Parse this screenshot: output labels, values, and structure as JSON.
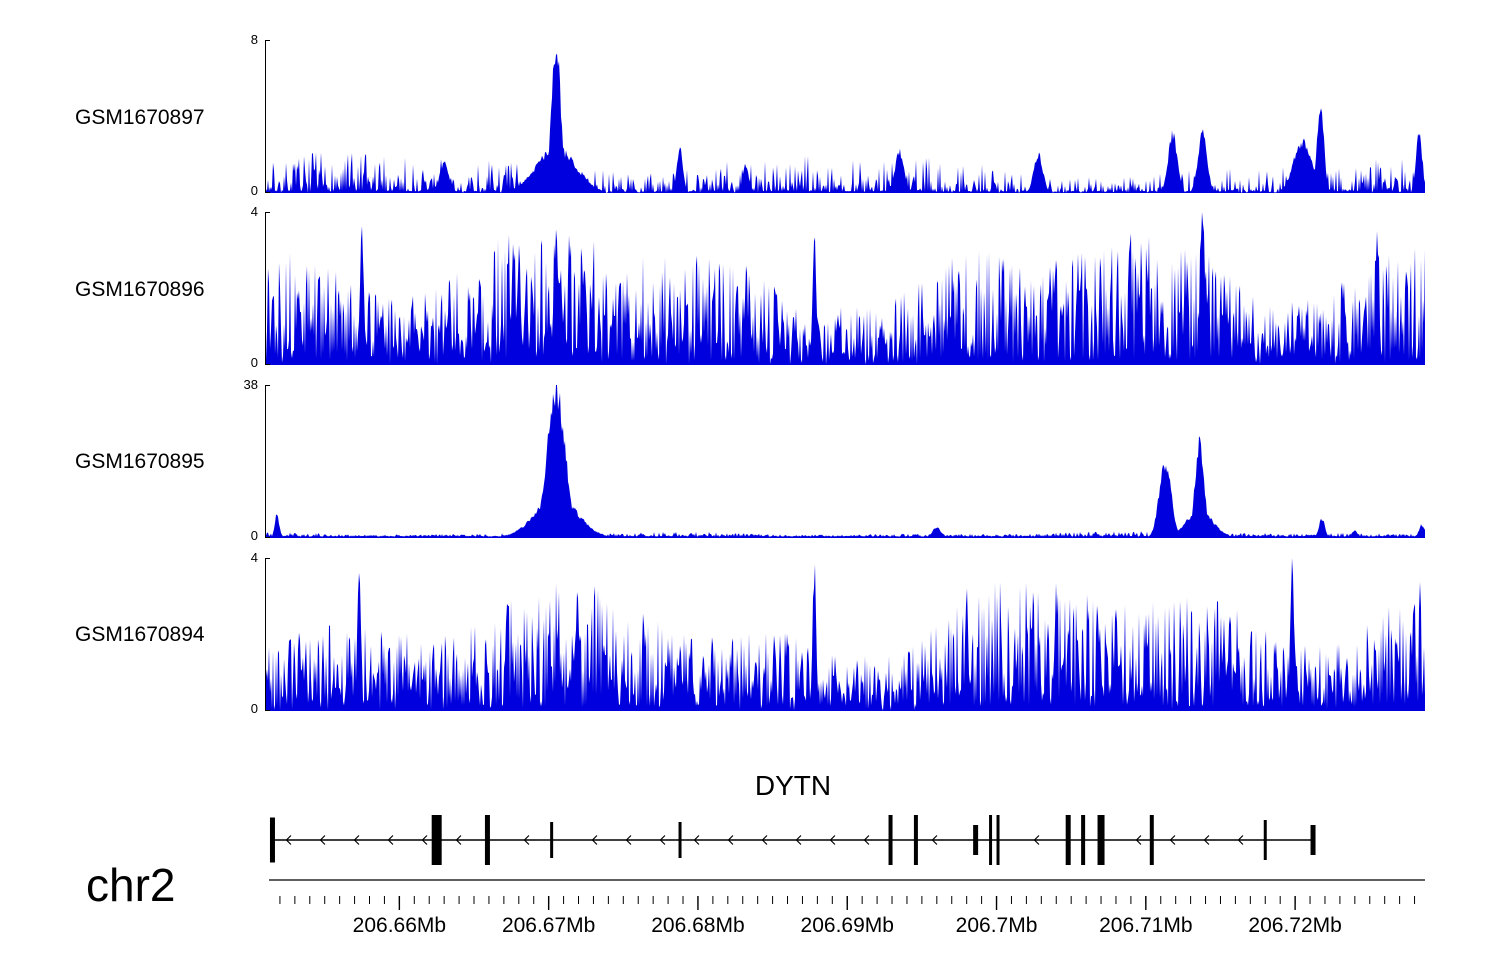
{
  "figure": {
    "background": "#ffffff",
    "signal_color": "#0000DE",
    "axis_color": "#000000",
    "text_color": "#000000"
  },
  "chart_data": {
    "type": "area",
    "description": "Four stacked genomic read-coverage tracks over gene DYTN on chr2, with gene model and genome coordinate axis",
    "x_axis": {
      "chromosome": "chr2",
      "start_mb": 206.651,
      "end_mb": 206.7287,
      "tick_values_mb": [
        206.66,
        206.67,
        206.68,
        206.69,
        206.7,
        206.71,
        206.72
      ],
      "tick_labels": [
        "206.66Mb",
        "206.67Mb",
        "206.68Mb",
        "206.69Mb",
        "206.7Mb",
        "206.71Mb",
        "206.72Mb"
      ],
      "minor_tick_interval_mb": 0.001
    },
    "tracks": [
      {
        "name": "GSM1670897",
        "ymin": 0,
        "ymax": 8,
        "ymin_label": "0",
        "ymax_label": "8",
        "noise": {
          "seed": 7,
          "floor": 0.012,
          "amp": 0.26,
          "exp": 3.0,
          "gap": 0.3
        },
        "peaks": [
          {
            "mb": 206.6705,
            "h": 1.0,
            "s": 0.0003
          },
          {
            "mb": 206.6705,
            "h": 0.3,
            "s": 0.0013
          },
          {
            "mb": 206.663,
            "h": 0.2,
            "s": 0.0003
          },
          {
            "mb": 206.6788,
            "h": 0.3,
            "s": 0.0002
          },
          {
            "mb": 206.6832,
            "h": 0.2,
            "s": 0.0002
          },
          {
            "mb": 206.6935,
            "h": 0.28,
            "s": 0.0003
          },
          {
            "mb": 206.7028,
            "h": 0.26,
            "s": 0.0003
          },
          {
            "mb": 206.7118,
            "h": 0.4,
            "s": 0.0003
          },
          {
            "mb": 206.7138,
            "h": 0.42,
            "s": 0.0003
          },
          {
            "mb": 206.7205,
            "h": 0.35,
            "s": 0.0006
          },
          {
            "mb": 206.7217,
            "h": 0.62,
            "s": 0.00022
          },
          {
            "mb": 206.7283,
            "h": 0.4,
            "s": 0.0002
          }
        ]
      },
      {
        "name": "GSM1670896",
        "ymin": 0,
        "ymax": 4,
        "ymin_label": "0",
        "ymax_label": "4",
        "noise": {
          "seed": 13,
          "floor": 0.03,
          "amp": 1.0,
          "exp": 1.25,
          "gap": 0.05
        },
        "peaks": [
          {
            "mb": 206.7138,
            "h": 1.0,
            "s": 0.00015
          },
          {
            "mb": 206.6575,
            "h": 0.93,
            "s": 0.00012
          },
          {
            "mb": 206.6705,
            "h": 0.9,
            "s": 0.00015
          },
          {
            "mb": 206.6878,
            "h": 0.9,
            "s": 0.00012
          },
          {
            "mb": 206.7255,
            "h": 0.9,
            "s": 0.00012
          }
        ]
      },
      {
        "name": "GSM1670895",
        "ymin": 0,
        "ymax": 38,
        "ymin_label": "0",
        "ymax_label": "38",
        "noise": {
          "seed": 21,
          "floor": 0.01,
          "amp": 0.035,
          "exp": 2.0,
          "gap": 0
        },
        "peaks": [
          {
            "mb": 206.6518,
            "h": 0.16,
            "s": 0.00015
          },
          {
            "mb": 206.6705,
            "h": 1.0,
            "s": 0.0006
          },
          {
            "mb": 206.6705,
            "h": 0.28,
            "s": 0.0014
          },
          {
            "mb": 206.696,
            "h": 0.07,
            "s": 0.0003
          },
          {
            "mb": 206.7113,
            "h": 0.5,
            "s": 0.0004
          },
          {
            "mb": 206.7136,
            "h": 0.65,
            "s": 0.0003
          },
          {
            "mb": 206.7136,
            "h": 0.18,
            "s": 0.0009
          },
          {
            "mb": 206.7218,
            "h": 0.13,
            "s": 0.0002
          },
          {
            "mb": 206.724,
            "h": 0.05,
            "s": 0.0002
          },
          {
            "mb": 206.7285,
            "h": 0.09,
            "s": 0.0002
          }
        ]
      },
      {
        "name": "GSM1670894",
        "ymin": 0,
        "ymax": 4,
        "ymin_label": "0",
        "ymax_label": "4",
        "noise": {
          "seed": 42,
          "floor": 0.03,
          "amp": 0.95,
          "exp": 1.35,
          "gap": 0.06
        },
        "peaks": [
          {
            "mb": 206.6573,
            "h": 0.92,
            "s": 0.00012
          },
          {
            "mb": 206.6878,
            "h": 0.96,
            "s": 0.00012
          },
          {
            "mb": 206.698,
            "h": 0.88,
            "s": 0.0001
          },
          {
            "mb": 206.7198,
            "h": 1.0,
            "s": 0.00012
          }
        ]
      }
    ],
    "gene_track": {
      "gene_name": "DYTN",
      "strand": "-",
      "start_mb": 206.6515,
      "end_mb": 206.7212,
      "exons": [
        {
          "mb": 206.6515,
          "w": 5,
          "h": 0.9
        },
        {
          "mb": 206.6625,
          "w": 10,
          "h": 1
        },
        {
          "mb": 206.6659,
          "w": 5,
          "h": 1
        },
        {
          "mb": 206.6702,
          "w": 3,
          "h": 0.72
        },
        {
          "mb": 206.6788,
          "w": 3,
          "h": 0.72
        },
        {
          "mb": 206.6929,
          "w": 4,
          "h": 1
        },
        {
          "mb": 206.6946,
          "w": 4,
          "h": 1
        },
        {
          "mb": 206.6986,
          "w": 5,
          "h": 0.6
        },
        {
          "mb": 206.6996,
          "w": 3,
          "h": 1
        },
        {
          "mb": 206.7001,
          "w": 3,
          "h": 1
        },
        {
          "mb": 206.7048,
          "w": 5,
          "h": 1
        },
        {
          "mb": 206.7058,
          "w": 4,
          "h": 1
        },
        {
          "mb": 206.707,
          "w": 7,
          "h": 1
        },
        {
          "mb": 206.7104,
          "w": 4,
          "h": 1
        },
        {
          "mb": 206.718,
          "w": 3,
          "h": 0.8
        },
        {
          "mb": 206.7212,
          "w": 5,
          "h": 0.6
        }
      ]
    },
    "chromosome_label": "chr2"
  }
}
